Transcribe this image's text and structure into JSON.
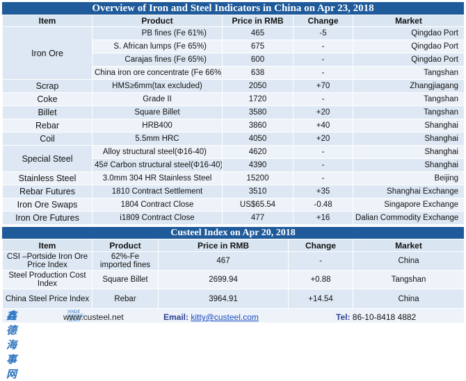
{
  "title1": "Overview of Iron and Steel Indicators in China on Apr 23, 2018",
  "headers1": {
    "item": "Item",
    "product": "Product",
    "price": "Price in RMB",
    "change": "Change",
    "market": "Market"
  },
  "iron_ore": {
    "item": "Iron Ore",
    "rows": [
      {
        "product": "PB fines (Fe 61%)",
        "price": "465",
        "change": "-5",
        "market": "Qingdao Port"
      },
      {
        "product": "S. African lumps (Fe 65%)",
        "price": "675",
        "change": "-",
        "market": "Qingdao Port"
      },
      {
        "product": "Carajas fines (Fe 65%)",
        "price": "600",
        "change": "-",
        "market": "Qingdao Port"
      },
      {
        "product": "China iron ore concentrate (Fe 66%)",
        "price": "638",
        "change": "-",
        "market": "Tangshan"
      }
    ]
  },
  "rows_mid": [
    {
      "item": "Scrap",
      "product": "HMS≥6mm(tax excluded)",
      "price": "2050",
      "change": "+70",
      "market": "Zhangjiagang"
    },
    {
      "item": "Coke",
      "product": "Grade II",
      "price": "1720",
      "change": "-",
      "market": "Tangshan"
    },
    {
      "item": "Billet",
      "product": "Square Billet",
      "price": "3580",
      "change": "+20",
      "market": "Tangshan"
    },
    {
      "item": "Rebar",
      "product": "HRB400",
      "price": "3860",
      "change": "+40",
      "market": "Shanghai"
    },
    {
      "item": "Coil",
      "product": "5.5mm HRC",
      "price": "4050",
      "change": "+20",
      "market": "Shanghai"
    }
  ],
  "special_steel": {
    "item": "Special Steel",
    "rows": [
      {
        "product": "Alloy structural steel(Φ16-40)",
        "price": "4620",
        "change": "-",
        "market": "Shanghai"
      },
      {
        "product": "45# Carbon structural steel(Φ16-40)",
        "price": "4390",
        "change": "-",
        "market": "Shanghai"
      }
    ]
  },
  "rows_tail": [
    {
      "item": "Stainless Steel",
      "product": "3.0mm 304 HR Stainless Steel",
      "price": "15200",
      "change": "-",
      "market": "Beijing"
    },
    {
      "item": "Rebar Futures",
      "product": "1810 Contract Settlement",
      "price": "3510",
      "change": "+35",
      "market": "Shanghai Exchange"
    },
    {
      "item": "Iron Ore Swaps",
      "product": "1804 Contract Close",
      "price": "US$65.54",
      "change": "-0.48",
      "market": "Singapore Exchange"
    },
    {
      "item": "Iron Ore Futures",
      "product": "i1809 Contract Close",
      "price": "477",
      "change": "+16",
      "market": "Dalian Commodity Exchange"
    }
  ],
  "title2": "Custeel Index on Apr 20, 2018",
  "headers2": {
    "item": "Item",
    "product": "Product",
    "price": "Price in RMB",
    "change": "Change",
    "market": "Market"
  },
  "index_rows": [
    {
      "item": "CSI –Portside Iron Ore Price Index",
      "product": "62%-Fe imported fines",
      "price": "467",
      "change": "-",
      "market": "China"
    },
    {
      "item": "Steel Production Cost Index",
      "product": "Square Billet",
      "price": "2699.94",
      "change": "+0.88",
      "market": "Tangshan"
    },
    {
      "item": "China Steel Price Index",
      "product": "Rebar",
      "price": "3964.91",
      "change": "+14.54",
      "market": "China"
    }
  ],
  "footer": {
    "logo_brand": "鑫德海事网",
    "logo_sub": "XINDE MARINE NEWS",
    "website": "www.custeel.net",
    "email_label": "Email:",
    "email": "kitty@custeel.com",
    "tel_label": "Tel:",
    "tel": "86-10-8418 4882"
  }
}
